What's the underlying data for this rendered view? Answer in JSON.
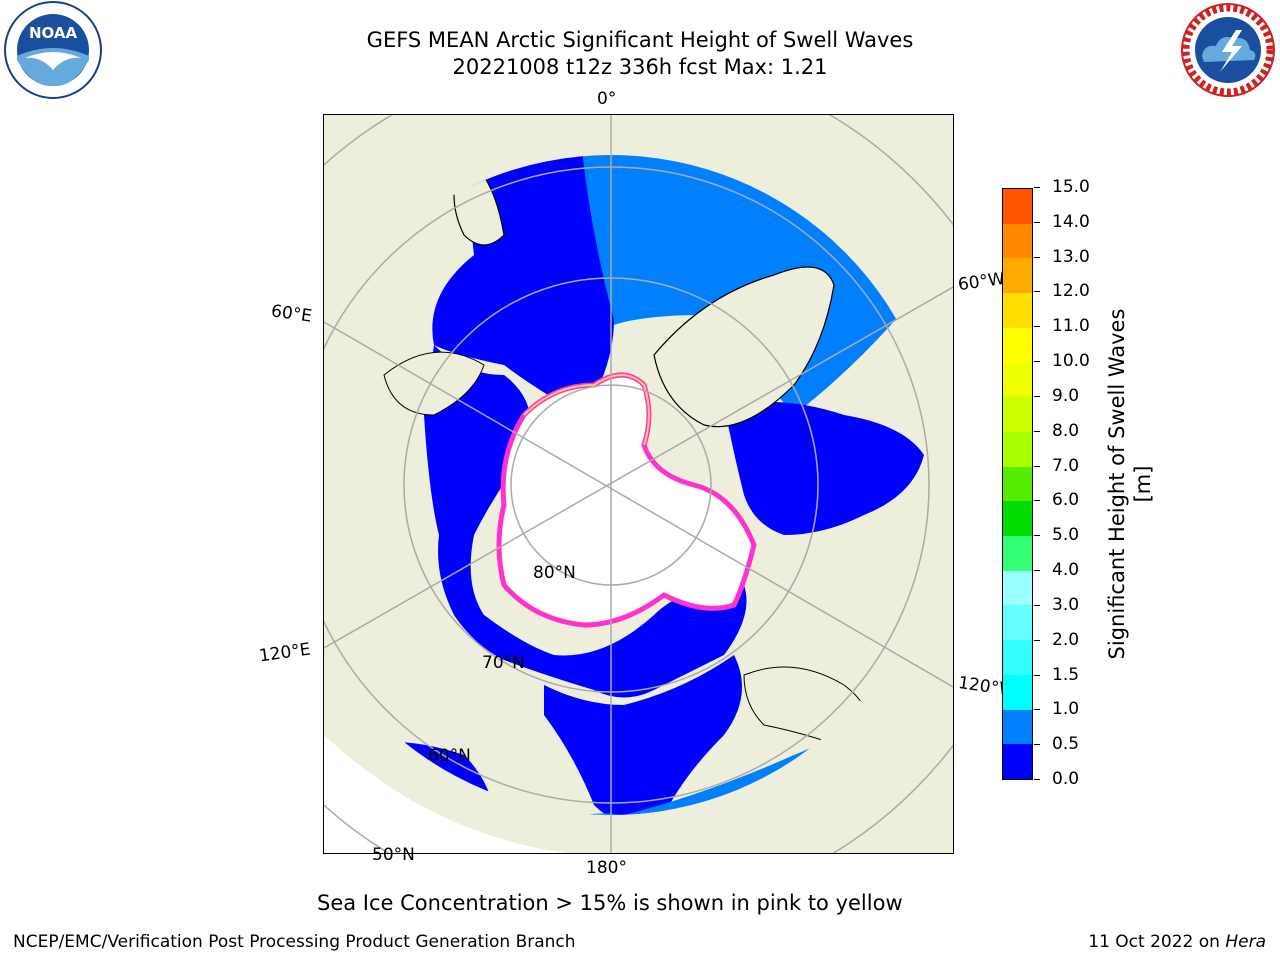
{
  "title_line1": "GEFS MEAN Arctic Significant Height of Swell Waves",
  "title_line2": "20221008 t12z 336h fcst   Max: 1.21",
  "map": {
    "lon_labels": {
      "lon0": "0°",
      "lon60w": "60°W",
      "lon60e": "60°E",
      "lon120e": "120°E",
      "lon120w": "120°W",
      "lon180": "180°"
    },
    "lat_labels": {
      "lat80": "80°N",
      "lat70": "70°N",
      "lat60": "60°N",
      "lat50": "50°N"
    },
    "colors": {
      "land": "#eeeedc",
      "open_ocean_low": "#0000ff",
      "swell_05_1": "#0080ff",
      "ice": "#ffffff",
      "ice_edge": "#ff33cc"
    }
  },
  "colorbar": {
    "title": "Significant Height of Swell Waves [m]",
    "ticks": [
      "0.0",
      "0.5",
      "1.0",
      "1.5",
      "2.0",
      "3.0",
      "4.0",
      "5.0",
      "6.0",
      "7.0",
      "8.0",
      "9.0",
      "10.0",
      "11.0",
      "12.0",
      "13.0",
      "14.0",
      "15.0"
    ],
    "colors": [
      "#0000ff",
      "#0080ff",
      "#00ffff",
      "#33ffff",
      "#66ffff",
      "#99ffff",
      "#33ff77",
      "#00dd00",
      "#55ee00",
      "#aaff00",
      "#ccff00",
      "#eeff00",
      "#ffff00",
      "#ffdd00",
      "#ffaa00",
      "#ff8800",
      "#ff5500",
      "#ff2200",
      "#ff0000"
    ]
  },
  "footer": {
    "caption": "Sea Ice Concentration > 15% is shown in pink to yellow",
    "left": "NCEP/EMC/Verification Post Processing Product Generation Branch",
    "right_date": "11 Oct 2022 on ",
    "right_machine": "Hera"
  },
  "logos": {
    "noaa_text": "NOAA",
    "nws_text": "NATIONAL WEATHER SERVICE"
  }
}
